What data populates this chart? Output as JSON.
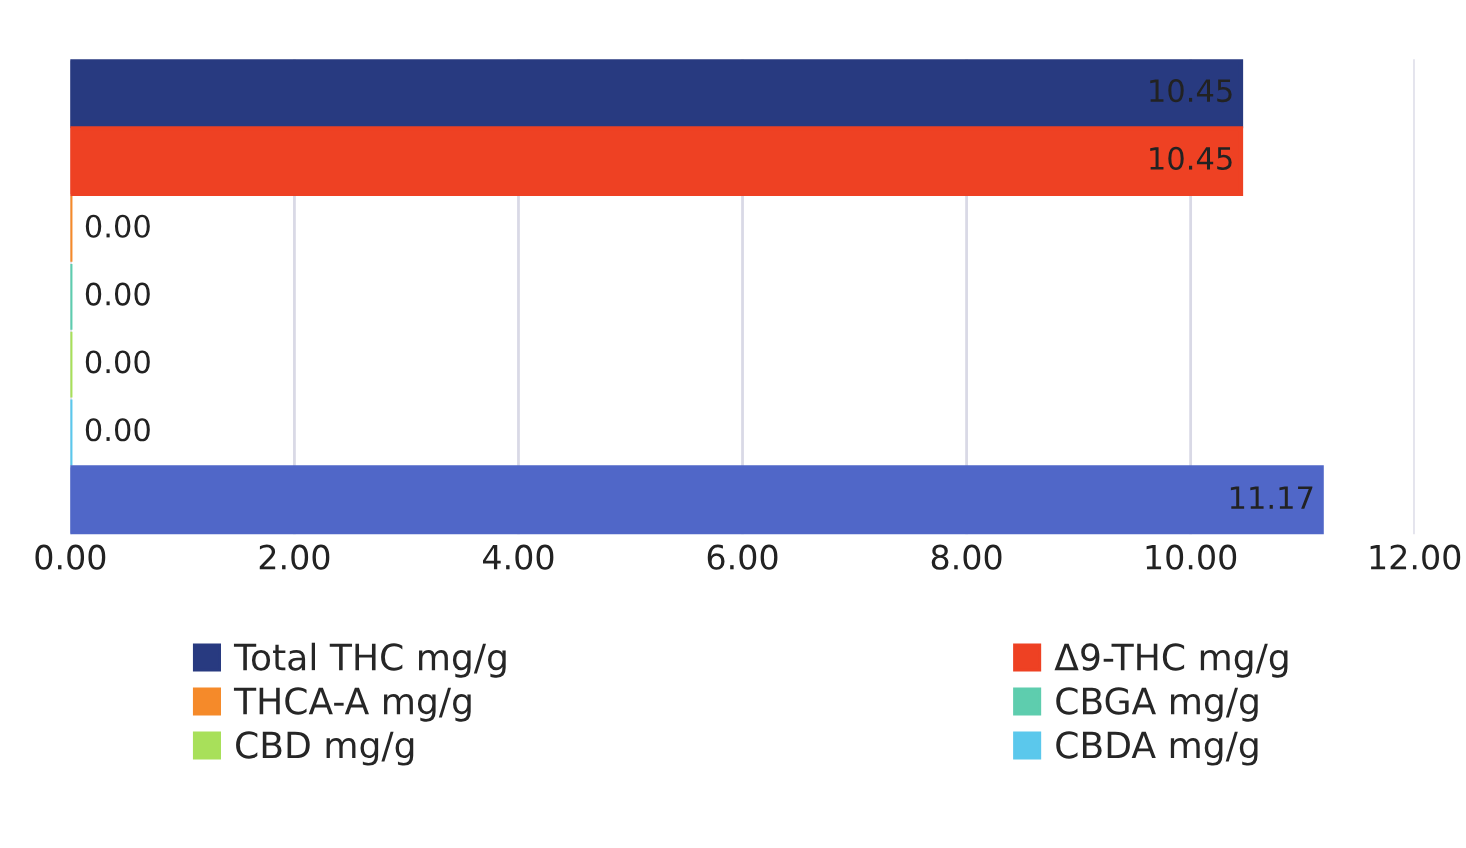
{
  "chart_data": {
    "type": "bar",
    "orientation": "horizontal",
    "categories": [
      null,
      null,
      null,
      null,
      null,
      null,
      null
    ],
    "series": [
      {
        "name": "Total THC mg/g",
        "color": "#283a80",
        "values": [
          10.45,
          null,
          null,
          null,
          null,
          null,
          null
        ],
        "value_labels": [
          "10.45",
          null,
          null,
          null,
          null,
          null,
          null
        ]
      },
      {
        "name": "Δ9-THC mg/g",
        "color": "#ee4123",
        "values": [
          null,
          10.45,
          null,
          null,
          null,
          null,
          null
        ],
        "value_labels": [
          null,
          "10.45",
          null,
          null,
          null,
          null,
          null
        ]
      },
      {
        "name": "THCA-A mg/g",
        "color": "#f58a2a",
        "values": [
          null,
          null,
          0,
          null,
          null,
          null,
          null
        ],
        "value_labels": [
          null,
          null,
          "0.00",
          null,
          null,
          null,
          null
        ]
      },
      {
        "name": "CBGA mg/g",
        "color": "#5ecdae",
        "values": [
          null,
          null,
          null,
          0,
          null,
          null,
          null
        ],
        "value_labels": [
          null,
          null,
          null,
          "0.00",
          null,
          null,
          null
        ]
      },
      {
        "name": "CBD mg/g",
        "color": "#a8e05a",
        "values": [
          null,
          null,
          null,
          null,
          0,
          null,
          null
        ],
        "value_labels": [
          null,
          null,
          null,
          null,
          "0.00",
          null,
          null
        ]
      },
      {
        "name": "CBDA mg/g",
        "color": "#5bc8ec",
        "values": [
          null,
          null,
          null,
          null,
          null,
          0,
          null
        ],
        "value_labels": [
          null,
          null,
          null,
          null,
          null,
          "0.00",
          null
        ]
      },
      {
        "color": "#5067c8",
        "values": [
          null,
          null,
          null,
          null,
          null,
          null,
          11.17
        ],
        "value_labels": [
          null,
          null,
          null,
          null,
          null,
          null,
          "11.17"
        ]
      }
    ],
    "xlim": [
      0,
      12
    ],
    "xticks": [
      {
        "value": 0,
        "label": "0.00"
      },
      {
        "value": 2,
        "label": "2.00"
      },
      {
        "value": 4,
        "label": "4.00"
      },
      {
        "value": 6,
        "label": "6.00"
      },
      {
        "value": 8,
        "label": "8.00"
      },
      {
        "value": 10,
        "label": "10.00"
      },
      {
        "value": 12,
        "label": "12.00"
      }
    ],
    "grid": "x",
    "legend": "bottom",
    "tick_labels": "x"
  }
}
